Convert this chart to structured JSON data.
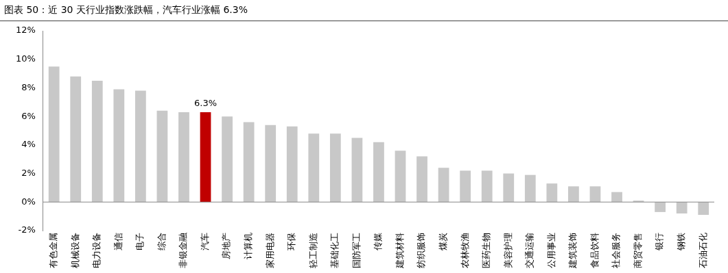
{
  "chart_data": {
    "type": "bar",
    "title": "图表 50：近 30 天行业指数涨跌幅，汽车行业涨幅 6.3%",
    "categories": [
      "有色金属",
      "机械设备",
      "电力设备",
      "通信",
      "电子",
      "综合",
      "非银金融",
      "汽车",
      "房地产",
      "计算机",
      "家用电器",
      "环保",
      "轻工制造",
      "基础化工",
      "国防军工",
      "传媒",
      "建筑材料",
      "纺织服饰",
      "煤炭",
      "农林牧渔",
      "医药生物",
      "美容护理",
      "交通运输",
      "公用事业",
      "建筑装饰",
      "食品饮料",
      "社会服务",
      "商贸零售",
      "银行",
      "钢铁",
      "石油石化"
    ],
    "values": [
      9.5,
      8.8,
      8.5,
      7.9,
      7.8,
      6.4,
      6.3,
      6.3,
      6.0,
      5.6,
      5.4,
      5.3,
      4.8,
      4.8,
      4.5,
      4.2,
      3.6,
      3.2,
      2.4,
      2.2,
      2.2,
      2.0,
      1.9,
      1.3,
      1.1,
      1.1,
      0.7,
      0.1,
      -0.7,
      -0.8,
      -0.9
    ],
    "colors": [
      "#c8c8c8",
      "#c8c8c8",
      "#c8c8c8",
      "#c8c8c8",
      "#c8c8c8",
      "#c8c8c8",
      "#c8c8c8",
      "#c00000",
      "#c8c8c8",
      "#c8c8c8",
      "#c8c8c8",
      "#c8c8c8",
      "#c8c8c8",
      "#c8c8c8",
      "#c8c8c8",
      "#c8c8c8",
      "#c8c8c8",
      "#c8c8c8",
      "#c8c8c8",
      "#c8c8c8",
      "#c8c8c8",
      "#c8c8c8",
      "#c8c8c8",
      "#c8c8c8",
      "#c8c8c8",
      "#c8c8c8",
      "#c8c8c8",
      "#c8c8c8",
      "#c8c8c8",
      "#c8c8c8",
      "#c8c8c8"
    ],
    "value_labels": [
      null,
      null,
      null,
      null,
      null,
      null,
      null,
      "6.3%",
      null,
      null,
      null,
      null,
      null,
      null,
      null,
      null,
      null,
      null,
      null,
      null,
      null,
      null,
      null,
      null,
      null,
      null,
      null,
      null,
      null,
      null,
      null
    ],
    "ylim": [
      -2,
      12
    ],
    "yticks": [
      {
        "value": -2,
        "label": "-2%"
      },
      {
        "value": 0,
        "label": "0%"
      },
      {
        "value": 2,
        "label": "2%"
      },
      {
        "value": 4,
        "label": "4%"
      },
      {
        "value": 6,
        "label": "6%"
      },
      {
        "value": 8,
        "label": "8%"
      },
      {
        "value": 10,
        "label": "10%"
      },
      {
        "value": 12,
        "label": "12%"
      }
    ],
    "ref_lines": [
      {
        "axis": "y",
        "value": 0,
        "color": "#888888"
      }
    ],
    "grid": false,
    "legend": false
  }
}
